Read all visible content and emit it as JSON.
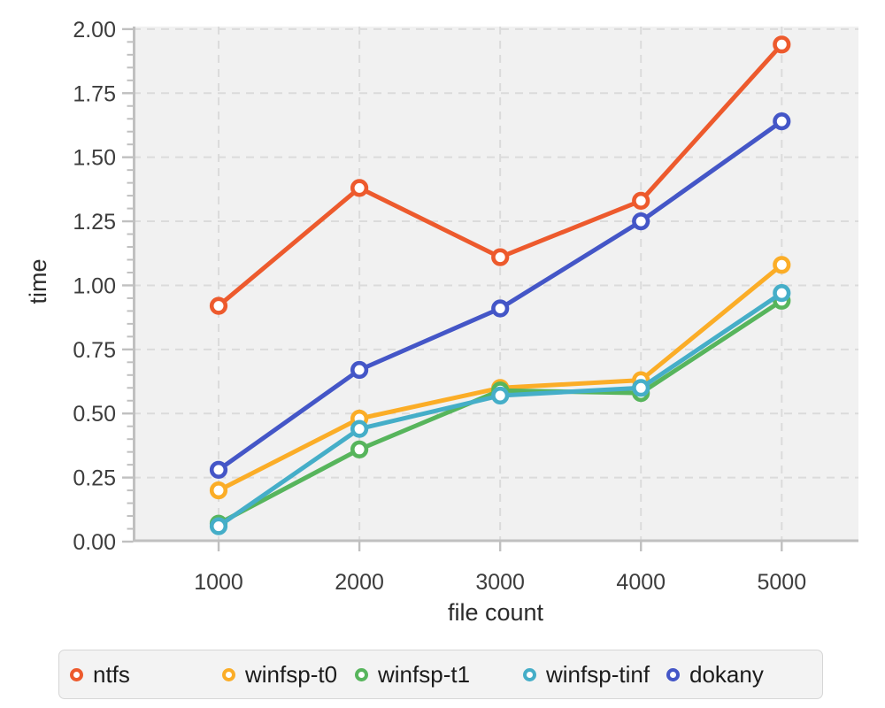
{
  "chart_data": {
    "type": "line",
    "title": "",
    "xlabel": "file count",
    "ylabel": "time",
    "x": [
      1000,
      2000,
      3000,
      4000,
      5000
    ],
    "xtick_labels": [
      "1000",
      "2000",
      "3000",
      "4000",
      "5000"
    ],
    "ytick_values": [
      0,
      0.25,
      0.5,
      0.75,
      1.0,
      1.25,
      1.5,
      1.75,
      2.0
    ],
    "ytick_labels": [
      "0.00",
      "0.25",
      "0.50",
      "0.75",
      "1.00",
      "1.25",
      "1.50",
      "1.75",
      "2.00"
    ],
    "xlim": [
      390,
      5545
    ],
    "ylim": [
      0,
      2.01
    ],
    "y_minor_tick_step": 0.05,
    "grid": "dashed-both",
    "marker": "open-circle",
    "legend_position": "bottom",
    "series": [
      {
        "name": "ntfs",
        "color": "#ed5a2d",
        "values": [
          0.92,
          1.38,
          1.11,
          1.33,
          1.94
        ]
      },
      {
        "name": "winfsp-t0",
        "color": "#fbad27",
        "values": [
          0.2,
          0.48,
          0.6,
          0.63,
          1.08
        ]
      },
      {
        "name": "winfsp-t1",
        "color": "#57b55c",
        "values": [
          0.07,
          0.36,
          0.59,
          0.58,
          0.94
        ]
      },
      {
        "name": "winfsp-tinf",
        "color": "#45aec8",
        "values": [
          0.06,
          0.44,
          0.57,
          0.6,
          0.97
        ]
      },
      {
        "name": "dokany",
        "color": "#4456c7",
        "values": [
          0.28,
          0.67,
          0.91,
          1.25,
          1.64
        ]
      }
    ]
  },
  "style_colors": {
    "panel_bg": "#f1f1f1",
    "grid": "#dbdbdb",
    "axis": "#c0c0c0",
    "tick": "#c0c0c0",
    "tick_label": "#3d3d3d",
    "axis_label": "#2b2b2b",
    "marker_fill": "#ffffff",
    "legend_bg": "#f3f3f3",
    "legend_border": "#d6d6d6",
    "legend_text": "#1c1c1c"
  }
}
